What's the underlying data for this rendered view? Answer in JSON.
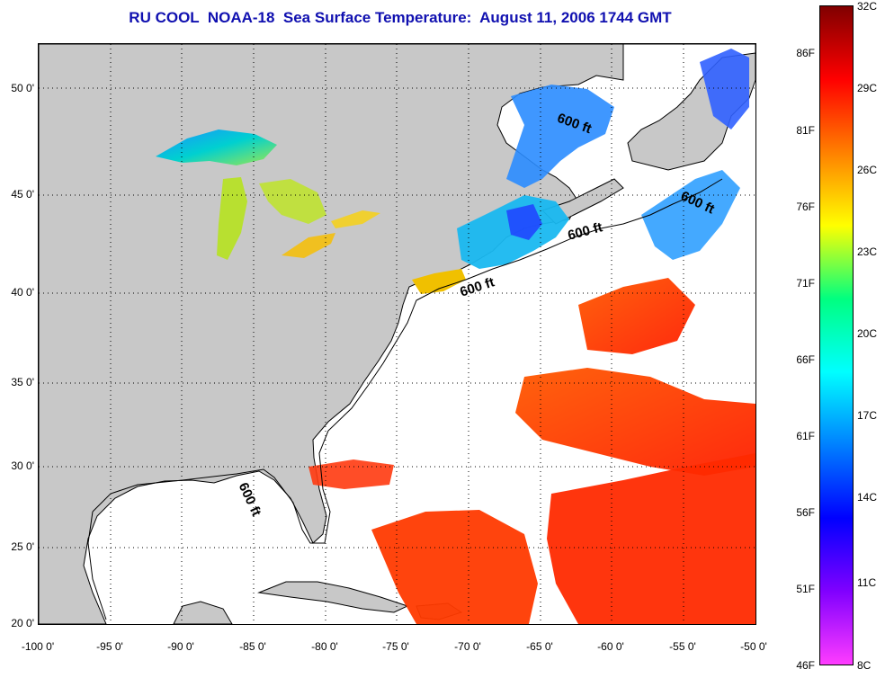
{
  "title": "RU COOL  NOAA-18  Sea Surface Temperature:  August 11, 2006 1744 GMT",
  "map": {
    "lat_labels": [
      "50 0'",
      "45 0'",
      "40 0'",
      "35 0'",
      "30 0'",
      "25 0'",
      "20 0'"
    ],
    "lon_labels": [
      "-100 0'",
      "-95 0'",
      "-90 0'",
      "-85 0'",
      "-80 0'",
      "-75 0'",
      "-70 0'",
      "-65 0'",
      "-60 0'",
      "-55 0'",
      "-50 0'"
    ],
    "extent": {
      "lon_min": -100,
      "lon_max": -50,
      "lat_min": 20,
      "lat_max": 52.5
    },
    "contour_labels": [
      "600 ft",
      "600 ft",
      "600 ft",
      "600 ft",
      "600 ft"
    ],
    "colors": {
      "land": "#c8c8c8",
      "ocean_no_data": "#ffffff",
      "graticule": "#000000"
    }
  },
  "colorbar": {
    "fahrenheit_labels": [
      "86F",
      "81F",
      "76F",
      "71F",
      "66F",
      "61F",
      "56F",
      "51F",
      "46F"
    ],
    "celsius_labels": [
      "32C",
      "29C",
      "26C",
      "23C",
      "20C",
      "17C",
      "14C",
      "11C",
      "8C"
    ],
    "range_c": [
      8,
      32
    ],
    "stops": [
      "#ff3cff",
      "#8000ff",
      "#0000ff",
      "#0080ff",
      "#00ffff",
      "#00ff80",
      "#ffff00",
      "#ff8000",
      "#ff0000",
      "#800000"
    ]
  }
}
